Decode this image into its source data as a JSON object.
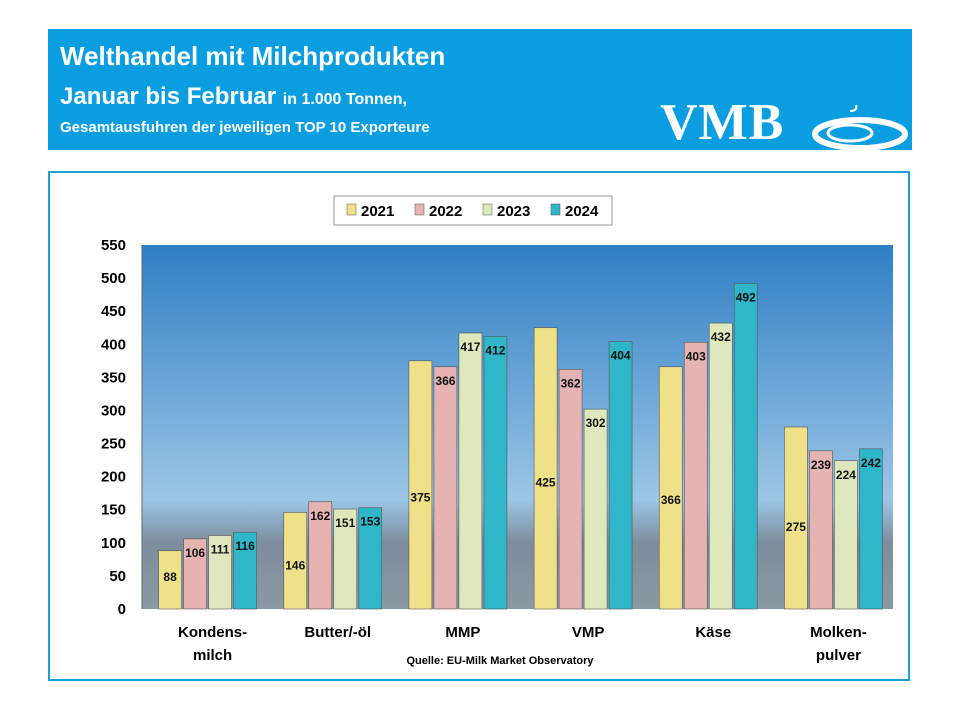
{
  "header": {
    "title": "Welthandel mit Milchprodukten",
    "subtitle_main": "Januar bis Februar",
    "subtitle_unit": "in 1.000 Tonnen,",
    "subtitle2": "Gesamtausfuhren der jeweiligen TOP 10 Exporteure",
    "logo": "VMB"
  },
  "colors": {
    "header": "#0a9ee0",
    "2021": "#efe08a",
    "2022": "#e6b3b3",
    "2023": "#dde9bd",
    "2024": "#2fb6c8"
  },
  "chart_data": {
    "type": "bar",
    "categories": [
      [
        "Kondens-",
        "milch"
      ],
      [
        "Butter/-öl"
      ],
      [
        "MMP"
      ],
      [
        "VMP"
      ],
      [
        "Käse"
      ],
      [
        "Molken-",
        "pulver"
      ]
    ],
    "series": [
      {
        "name": "2021",
        "values": [
          88,
          146,
          375,
          425,
          366,
          275
        ]
      },
      {
        "name": "2022",
        "values": [
          106,
          162,
          366,
          362,
          403,
          239
        ]
      },
      {
        "name": "2023",
        "values": [
          111,
          151,
          417,
          302,
          432,
          224
        ]
      },
      {
        "name": "2024",
        "values": [
          116,
          153,
          412,
          404,
          492,
          242
        ]
      }
    ],
    "ylim": [
      0,
      550
    ],
    "yticks": [
      "0",
      "50",
      "100",
      "150",
      "200",
      "250",
      "300",
      "350",
      "400",
      "450",
      "500",
      "550"
    ],
    "legend": "top",
    "source": "Quelle: EU-Milk  Market Observatory"
  }
}
